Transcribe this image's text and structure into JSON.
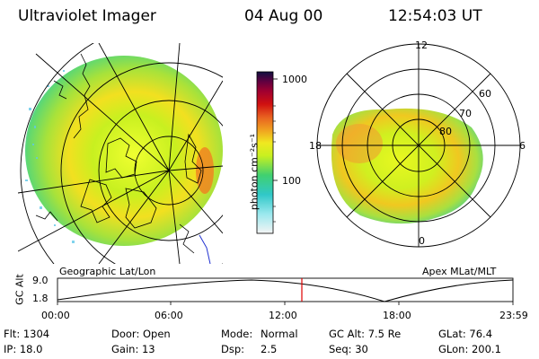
{
  "header": {
    "instrument": "Ultraviolet Imager",
    "date": "04 Aug 00",
    "time": "12:54:03 UT"
  },
  "colorbar": {
    "unit_label": "photon cm⁻²s⁻¹",
    "ticks": [
      "1000",
      "100"
    ],
    "scale": "log"
  },
  "left_map": {
    "label": "Geographic Lat/Lon"
  },
  "right_map": {
    "label": "Apex MLat/MLT",
    "mlt_labels": [
      "12",
      "18",
      "6",
      "0"
    ],
    "mlat_labels": [
      "60",
      "70",
      "80"
    ]
  },
  "altitude_plot": {
    "ylabel": "GC Alt",
    "yticks": [
      "9.0",
      "1.8"
    ],
    "xticks": [
      "00:00",
      "06:00",
      "12:00",
      "18:00",
      "23:59"
    ],
    "marker_time": "12:54",
    "marker_color": "#e00000"
  },
  "footer": {
    "flt": "Flt: 1304",
    "ip": "IP: 18.0",
    "door": "Door: Open",
    "gain": "Gain: 13",
    "mode_label": "Mode:",
    "mode_value": "Normal",
    "dsp_label": "Dsp:",
    "dsp_value": "2.5",
    "gc_alt": "GC Alt: 7.5 Re",
    "seq": "Seq: 30",
    "glat": "GLat: 76.4",
    "glon": "GLon: 200.1"
  }
}
